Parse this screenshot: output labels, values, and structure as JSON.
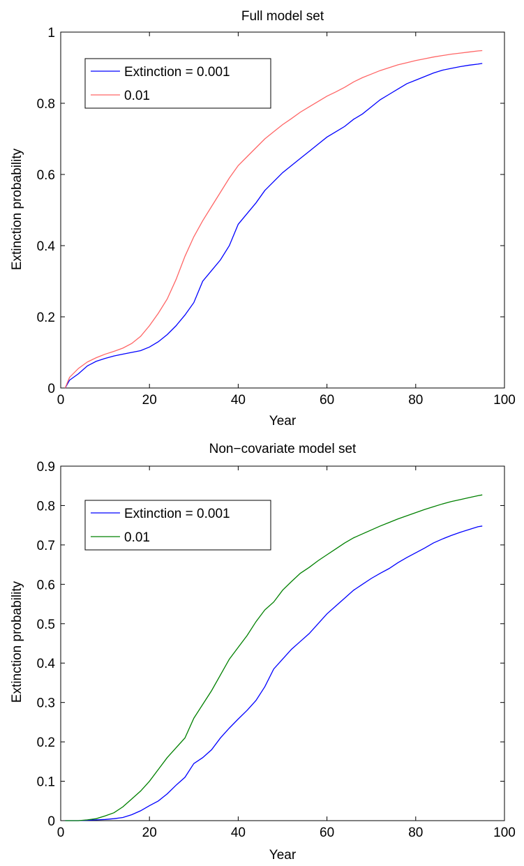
{
  "chart_data": [
    {
      "type": "line",
      "title": "Full model set",
      "xlabel": "Year",
      "ylabel": "Extinction probability",
      "xlim": [
        0,
        100
      ],
      "ylim": [
        0,
        1
      ],
      "xticks": [
        0,
        20,
        40,
        60,
        80,
        100
      ],
      "xtick_labels": [
        "0",
        "20",
        "40",
        "60",
        "80",
        "100"
      ],
      "yticks": [
        0,
        0.2,
        0.4,
        0.6,
        0.8,
        1
      ],
      "ytick_labels": [
        "0",
        "0.2",
        "0.4",
        "0.6",
        "0.8",
        "1"
      ],
      "grid": false,
      "legend_position": "top-left",
      "series": [
        {
          "name": "Extinction = 0.001",
          "color": "#0000ff",
          "x": [
            1,
            2,
            4,
            6,
            8,
            10,
            12,
            14,
            16,
            18,
            20,
            22,
            24,
            26,
            28,
            30,
            32,
            34,
            36,
            38,
            40,
            42,
            44,
            46,
            48,
            50,
            52,
            54,
            56,
            58,
            60,
            62,
            64,
            66,
            68,
            70,
            72,
            74,
            76,
            78,
            80,
            82,
            84,
            86,
            88,
            90,
            92,
            94,
            95
          ],
          "y": [
            0.0,
            0.022,
            0.04,
            0.062,
            0.075,
            0.083,
            0.09,
            0.095,
            0.1,
            0.105,
            0.115,
            0.13,
            0.15,
            0.175,
            0.205,
            0.24,
            0.3,
            0.33,
            0.36,
            0.4,
            0.46,
            0.49,
            0.52,
            0.555,
            0.58,
            0.605,
            0.625,
            0.645,
            0.665,
            0.685,
            0.705,
            0.72,
            0.735,
            0.755,
            0.77,
            0.79,
            0.81,
            0.825,
            0.84,
            0.855,
            0.865,
            0.875,
            0.885,
            0.893,
            0.898,
            0.903,
            0.907,
            0.91,
            0.912
          ]
        },
        {
          "name": "0.01",
          "color": "#ff6666",
          "x": [
            1,
            2,
            4,
            6,
            8,
            10,
            12,
            14,
            16,
            18,
            20,
            22,
            24,
            26,
            28,
            30,
            32,
            34,
            36,
            38,
            40,
            42,
            44,
            46,
            48,
            50,
            52,
            54,
            56,
            58,
            60,
            62,
            64,
            66,
            68,
            70,
            72,
            74,
            76,
            78,
            80,
            82,
            84,
            86,
            88,
            90,
            92,
            94,
            95
          ],
          "y": [
            0.0,
            0.03,
            0.055,
            0.073,
            0.085,
            0.095,
            0.103,
            0.112,
            0.125,
            0.145,
            0.175,
            0.21,
            0.25,
            0.305,
            0.37,
            0.425,
            0.47,
            0.51,
            0.55,
            0.59,
            0.625,
            0.65,
            0.675,
            0.7,
            0.72,
            0.74,
            0.757,
            0.775,
            0.79,
            0.805,
            0.82,
            0.832,
            0.845,
            0.86,
            0.872,
            0.882,
            0.892,
            0.9,
            0.908,
            0.914,
            0.92,
            0.925,
            0.93,
            0.934,
            0.938,
            0.941,
            0.944,
            0.947,
            0.948
          ]
        }
      ]
    },
    {
      "type": "line",
      "title": "Non−covariate model set",
      "xlabel": "Year",
      "ylabel": "Extinction probability",
      "xlim": [
        0,
        100
      ],
      "ylim": [
        0,
        0.9
      ],
      "xticks": [
        0,
        20,
        40,
        60,
        80,
        100
      ],
      "xtick_labels": [
        "0",
        "20",
        "40",
        "60",
        "80",
        "100"
      ],
      "yticks": [
        0,
        0.1,
        0.2,
        0.3,
        0.4,
        0.5,
        0.6,
        0.7,
        0.8,
        0.9
      ],
      "ytick_labels": [
        "0",
        "0.1",
        "0.2",
        "0.3",
        "0.4",
        "0.5",
        "0.6",
        "0.7",
        "0.8",
        "0.9"
      ],
      "grid": false,
      "legend_position": "top-left",
      "series": [
        {
          "name": "Extinction = 0.001",
          "color": "#0000ff",
          "x": [
            1,
            4,
            6,
            8,
            10,
            12,
            14,
            16,
            18,
            20,
            22,
            24,
            26,
            28,
            30,
            32,
            34,
            36,
            38,
            40,
            42,
            44,
            46,
            48,
            50,
            52,
            54,
            56,
            58,
            60,
            62,
            64,
            66,
            68,
            70,
            72,
            74,
            76,
            78,
            80,
            82,
            84,
            86,
            88,
            90,
            92,
            94,
            95
          ],
          "y": [
            0.0,
            0.0,
            0.001,
            0.002,
            0.003,
            0.005,
            0.008,
            0.015,
            0.025,
            0.038,
            0.05,
            0.068,
            0.09,
            0.11,
            0.145,
            0.16,
            0.18,
            0.21,
            0.235,
            0.258,
            0.28,
            0.305,
            0.34,
            0.385,
            0.41,
            0.435,
            0.455,
            0.475,
            0.5,
            0.525,
            0.545,
            0.565,
            0.585,
            0.6,
            0.615,
            0.628,
            0.64,
            0.655,
            0.668,
            0.68,
            0.692,
            0.705,
            0.715,
            0.724,
            0.732,
            0.739,
            0.746,
            0.748
          ]
        },
        {
          "name": "0.01",
          "color": "#008000",
          "x": [
            1,
            4,
            6,
            8,
            10,
            12,
            14,
            16,
            18,
            20,
            22,
            24,
            26,
            28,
            30,
            32,
            34,
            36,
            38,
            40,
            42,
            44,
            46,
            48,
            50,
            52,
            54,
            56,
            58,
            60,
            62,
            64,
            66,
            68,
            70,
            72,
            74,
            76,
            78,
            80,
            82,
            84,
            86,
            88,
            90,
            92,
            94,
            95
          ],
          "y": [
            0.0,
            0.0,
            0.002,
            0.005,
            0.012,
            0.02,
            0.035,
            0.055,
            0.075,
            0.1,
            0.13,
            0.16,
            0.185,
            0.21,
            0.26,
            0.295,
            0.33,
            0.37,
            0.41,
            0.44,
            0.47,
            0.505,
            0.535,
            0.555,
            0.585,
            0.607,
            0.628,
            0.643,
            0.66,
            0.675,
            0.69,
            0.705,
            0.718,
            0.728,
            0.738,
            0.748,
            0.757,
            0.766,
            0.774,
            0.782,
            0.79,
            0.797,
            0.804,
            0.81,
            0.815,
            0.82,
            0.825,
            0.827
          ]
        }
      ]
    }
  ]
}
